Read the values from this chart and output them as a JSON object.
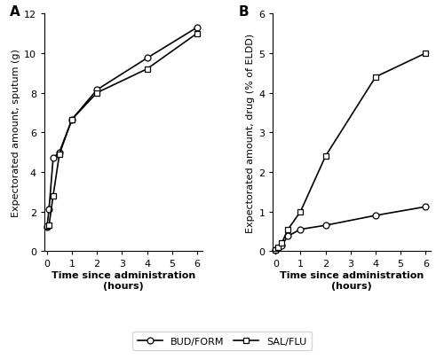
{
  "panel_A": {
    "title": "A",
    "xlabel": "Time since administration\n(hours)",
    "ylabel": "Expectorated amount, sputum (g)",
    "xlim": [
      -0.1,
      6.2
    ],
    "ylim": [
      0,
      12
    ],
    "xticks": [
      0,
      1,
      2,
      3,
      4,
      5,
      6
    ],
    "yticks": [
      0,
      2,
      4,
      6,
      8,
      10,
      12
    ],
    "bud_form_x": [
      0,
      0.083,
      0.25,
      0.5,
      1,
      2,
      4,
      6
    ],
    "bud_form_y": [
      1.2,
      2.1,
      4.7,
      5.0,
      6.65,
      8.15,
      9.75,
      11.3
    ],
    "sal_flu_x": [
      0,
      0.083,
      0.25,
      0.5,
      1,
      2,
      4,
      6
    ],
    "sal_flu_y": [
      1.25,
      1.3,
      2.8,
      4.9,
      6.65,
      8.0,
      9.2,
      11.0
    ]
  },
  "panel_B": {
    "title": "B",
    "xlabel": "Time since administration\n(hours)",
    "ylabel": "Expectorated amount, drug (% of ELDD)",
    "xlim": [
      -0.1,
      6.2
    ],
    "ylim": [
      0,
      6
    ],
    "xticks": [
      0,
      1,
      2,
      3,
      4,
      5,
      6
    ],
    "yticks": [
      0,
      1,
      2,
      3,
      4,
      5,
      6
    ],
    "bud_form_x": [
      0,
      0.083,
      0.25,
      0.5,
      1,
      2,
      4,
      6
    ],
    "bud_form_y": [
      0.02,
      0.08,
      0.15,
      0.38,
      0.55,
      0.65,
      0.9,
      1.12
    ],
    "sal_flu_x": [
      0,
      0.083,
      0.25,
      0.5,
      1,
      2,
      4,
      6
    ],
    "sal_flu_y": [
      0.02,
      0.1,
      0.2,
      0.55,
      1.0,
      2.4,
      4.4,
      5.0
    ]
  },
  "legend": {
    "bud_form_label": "BUD/FORM",
    "sal_flu_label": "SAL/FLU"
  },
  "line_color": "#000000",
  "marker_circle": "o",
  "marker_square": "s",
  "markersize": 5,
  "linewidth": 1.2,
  "background_color": "#ffffff",
  "title_fontsize": 11,
  "label_fontsize": 8,
  "tick_fontsize": 8,
  "legend_fontsize": 8
}
